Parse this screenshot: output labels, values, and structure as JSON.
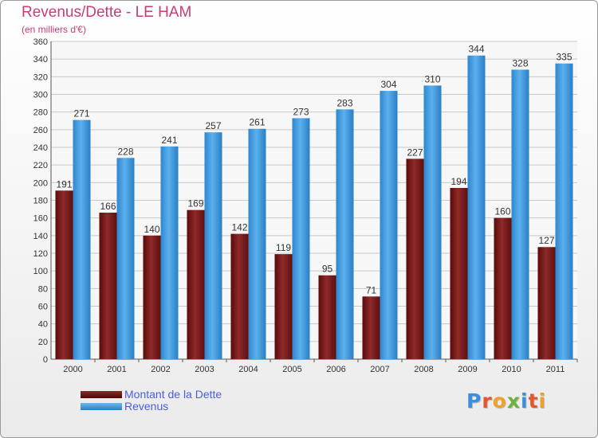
{
  "title": "Revenus/Dette - LE HAM",
  "subtitle": "(en milliers d'€)",
  "logo": {
    "text": "Proxiti",
    "letter_colors": [
      "#3a8fe0",
      "#e4572e",
      "#f0a12b",
      "#6cb33e",
      "#3a8fe0",
      "#e4572e",
      "#f0a12b"
    ]
  },
  "colors": {
    "dette": "#7a1a1a",
    "revenus": "#3d97dd",
    "title": "#c83c78",
    "legend_text": "#4a5de0"
  },
  "chart_data": {
    "type": "bar",
    "title": "Revenus/Dette - LE HAM",
    "subtitle": "(en milliers d'€)",
    "xlabel": "",
    "ylabel": "",
    "ylim": [
      0,
      360
    ],
    "y_ticks": [
      0,
      20,
      40,
      60,
      80,
      100,
      120,
      140,
      160,
      180,
      200,
      220,
      240,
      260,
      280,
      300,
      320,
      340,
      360
    ],
    "grid": true,
    "legend_position": "bottom-left",
    "categories": [
      "2000",
      "2001",
      "2002",
      "2003",
      "2004",
      "2005",
      "2006",
      "2007",
      "2008",
      "2009",
      "2010",
      "2011"
    ],
    "series": [
      {
        "name": "Montant de la Dette",
        "values": [
          191,
          166,
          140,
          169,
          142,
          119,
          95,
          71,
          227,
          194,
          160,
          127
        ]
      },
      {
        "name": "Revenus",
        "values": [
          271,
          228,
          241,
          257,
          261,
          273,
          283,
          304,
          310,
          344,
          328,
          335
        ]
      }
    ]
  }
}
